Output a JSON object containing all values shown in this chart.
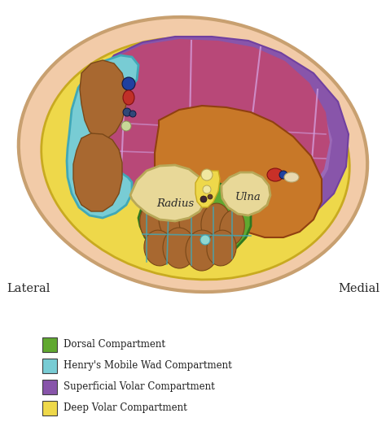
{
  "bg_color": "#ffffff",
  "skin_color": "#f2cba8",
  "skin_edge_color": "#c8a070",
  "yellow_color": "#eed84a",
  "yellow_edge_color": "#c8aa20",
  "purple_color": "#8855aa",
  "purple_light_color": "#b888cc",
  "purple_dark_color": "#7040a0",
  "teal_color": "#78ccd4",
  "teal_edge_color": "#40a8b8",
  "green_color": "#60a830",
  "green_edge_color": "#307820",
  "green_light_color": "#80c858",
  "orange_color": "#c87828",
  "orange_edge_color": "#904010",
  "bone_color": "#e8d898",
  "bone_edge_color": "#b8a858",
  "muscle_brown": "#a86830",
  "muscle_brown_edge": "#7a4818",
  "red_vessel": "#c02820",
  "blue_vessel": "#203880",
  "dark_blue": "#102040",
  "gray_vessel": "#607888",
  "title_lateral": "Lateral",
  "title_medial": "Medial",
  "label_radius": "Radius",
  "label_ulna": "Ulna",
  "legend_items": [
    {
      "color": "#60a830",
      "label": "Dorsal Compartment"
    },
    {
      "color": "#78ccd4",
      "label": "Henry's Mobile Wad Compartment"
    },
    {
      "color": "#8855aa",
      "label": "Superficial Volar Compartment"
    },
    {
      "color": "#eed84a",
      "label": "Deep Volar Compartment"
    }
  ]
}
